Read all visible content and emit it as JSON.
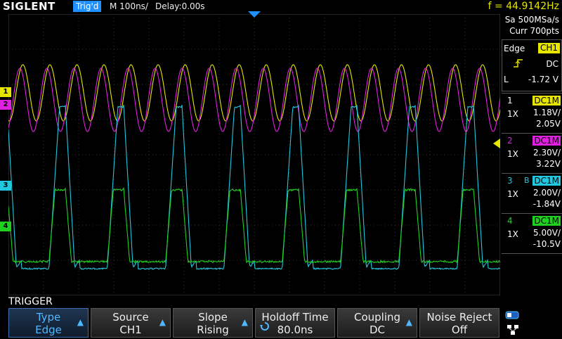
{
  "header": {
    "logo": "SIGLENT",
    "trig_status": "Trig'd",
    "timebase": "M 100ns/",
    "delay": "Delay:0.00s",
    "frequency": "f = 44.9142Hz"
  },
  "acquisition": {
    "sample_rate": "Sa 500MSa/s",
    "memory": "Curr 700pts"
  },
  "trigger_panel": {
    "type": "Edge",
    "source": "CH1",
    "coupling": "DC",
    "level_label": "L",
    "level": "-1.72 V"
  },
  "channels": [
    {
      "num": "1",
      "coupling": "DC1M",
      "probe": "1X",
      "scale": "1.18V/",
      "offset": "2.05V",
      "color": "#e6e600"
    },
    {
      "num": "2",
      "coupling": "DC1M",
      "probe": "1X",
      "scale": "2.30V/",
      "offset": "3.22V",
      "color": "#e020e0"
    },
    {
      "num": "3",
      "coupling": "DC1M",
      "probe": "1X",
      "scale": "2.00V/",
      "offset": "-1.84V",
      "color": "#20c8e0",
      "bw_limit": "B"
    },
    {
      "num": "4",
      "coupling": "DC1M",
      "probe": "1X",
      "scale": "5.00V/",
      "offset": "-10.5V",
      "color": "#20d020"
    }
  ],
  "bottom": {
    "menu_title": "TRIGGER",
    "softkeys": [
      {
        "label": "Type",
        "value": "Edge"
      },
      {
        "label": "Source",
        "value": "CH1"
      },
      {
        "label": "Slope",
        "value": "Rising"
      },
      {
        "label": "Holdoff Time",
        "value": "80.0ns"
      },
      {
        "label": "Coupling",
        "value": "DC"
      },
      {
        "label": "Noise Reject",
        "value": "Off"
      }
    ]
  },
  "markers": {
    "ch1": "1",
    "ch2": "2",
    "ch3": "3",
    "ch4": "4"
  }
}
